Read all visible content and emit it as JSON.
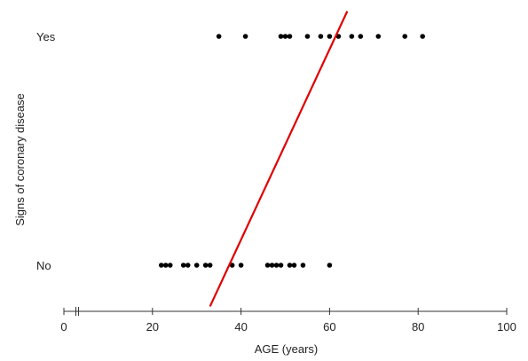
{
  "chart_data": {
    "type": "scatter",
    "title": "",
    "xlabel": "AGE (years)",
    "ylabel": "Signs of coronary disease",
    "xlim": [
      0,
      100
    ],
    "xticks": [
      0,
      20,
      40,
      60,
      80,
      100
    ],
    "axis_break_near": 3,
    "ycategories": [
      "No",
      "Yes"
    ],
    "series": [
      {
        "category": "Yes",
        "x": [
          35,
          41,
          49,
          50,
          51,
          55,
          58,
          60,
          62,
          65,
          67,
          71,
          77,
          81
        ]
      },
      {
        "category": "No",
        "x": [
          22,
          23,
          24,
          27,
          28,
          30,
          32,
          33,
          38,
          40,
          46,
          47,
          48,
          49,
          51,
          52,
          54,
          60
        ]
      }
    ],
    "fit_line": {
      "from": {
        "x": 33,
        "y": -0.18
      },
      "to": {
        "x": 64,
        "y": 1.11
      }
    },
    "colors": {
      "points": "#000000",
      "fit_line": "#e00000",
      "axis": "#333333"
    },
    "grid": false
  }
}
